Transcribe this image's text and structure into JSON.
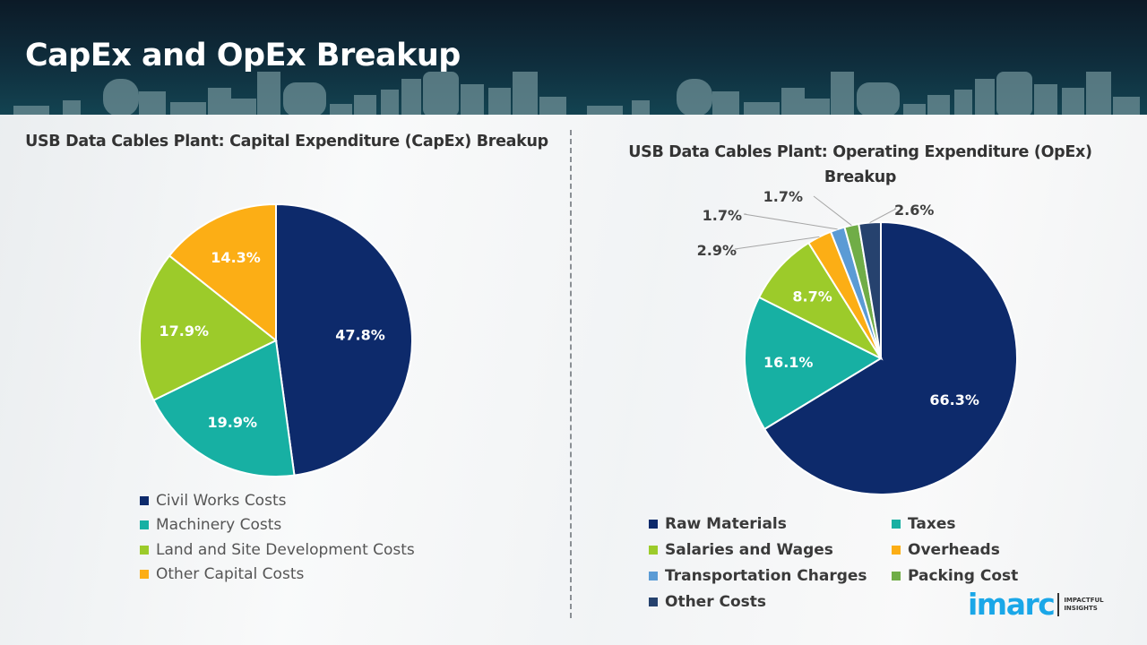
{
  "header": {
    "title": "CapEx and OpEx Breakup"
  },
  "chart_data": [
    {
      "type": "pie",
      "title": "USB Data Cables Plant: Capital Expenditure (CapEx) Breakup",
      "start": "12 o'clock, clockwise",
      "legend_position": "bottom",
      "labels_inside": true,
      "slices": [
        {
          "label": "Civil Works Costs",
          "value": 47.8,
          "display": "47.8%",
          "color": "#0d2a6b"
        },
        {
          "label": "Machinery Costs",
          "value": 19.9,
          "display": "19.9%",
          "color": "#17b0a3"
        },
        {
          "label": "Land and Site Development Costs",
          "value": 17.9,
          "display": "17.9%",
          "color": "#9ccb2a"
        },
        {
          "label": "Other Capital Costs",
          "value": 14.3,
          "display": "14.3%",
          "color": "#fcae15"
        }
      ]
    },
    {
      "type": "pie",
      "title": "USB Data Cables Plant: Operating Expenditure (OpEx) Breakup",
      "start": "12 o'clock, clockwise",
      "legend_position": "bottom",
      "slices": [
        {
          "label": "Raw Materials",
          "value": 66.3,
          "display": "66.3%",
          "color": "#0d2a6b",
          "label_outside": false
        },
        {
          "label": "Taxes",
          "value": 16.1,
          "display": "16.1%",
          "color": "#17b0a3",
          "label_outside": false
        },
        {
          "label": "Salaries and Wages",
          "value": 8.7,
          "display": "8.7%",
          "color": "#9ccb2a",
          "label_outside": false
        },
        {
          "label": "Overheads",
          "value": 2.9,
          "display": "2.9%",
          "color": "#fcae15",
          "label_outside": true
        },
        {
          "label": "Transportation Charges",
          "value": 1.7,
          "display": "1.7%",
          "color": "#5b9bd5",
          "label_outside": true
        },
        {
          "label": "Packing Cost",
          "value": 1.7,
          "display": "1.7%",
          "color": "#70ad47",
          "label_outside": true
        },
        {
          "label": "Other Costs",
          "value": 2.6,
          "display": "2.6%",
          "color": "#26426e",
          "label_outside": true
        }
      ]
    }
  ],
  "logo": {
    "word": "imarc",
    "tagline_1": "IMPACTFUL",
    "tagline_2": "INSIGHTS"
  }
}
